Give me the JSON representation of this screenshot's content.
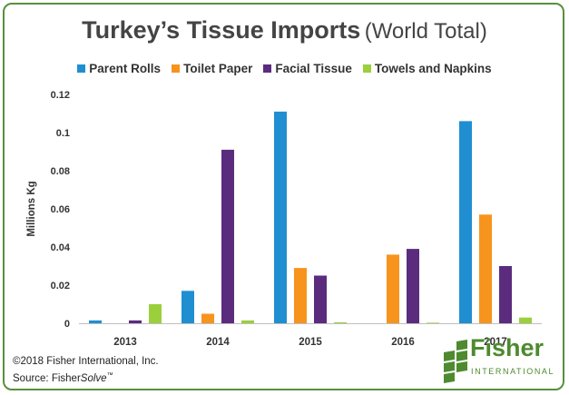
{
  "title": {
    "main": "Turkey’s Tissue Imports",
    "sub": "(World Total)"
  },
  "chart_data": {
    "type": "bar",
    "categories": [
      "2013",
      "2014",
      "2015",
      "2016",
      "2017"
    ],
    "series": [
      {
        "name": "Parent Rolls",
        "color": "#1f8fd1",
        "values": [
          0.0015,
          0.017,
          0.111,
          0.0,
          0.106
        ]
      },
      {
        "name": "Toilet Paper",
        "color": "#f7941d",
        "values": [
          0.0,
          0.005,
          0.029,
          0.036,
          0.057
        ]
      },
      {
        "name": "Facial Tissue",
        "color": "#5b2c7e",
        "values": [
          0.0015,
          0.091,
          0.025,
          0.039,
          0.03
        ]
      },
      {
        "name": "Towels and Napkins",
        "color": "#9bcf3c",
        "values": [
          0.01,
          0.0015,
          0.0005,
          0.0003,
          0.003
        ]
      }
    ],
    "ylabel": "Millions Kg",
    "xlabel": "",
    "ylim": [
      0,
      0.12
    ],
    "yticks": [
      "0",
      "0.02",
      "0.04",
      "0.06",
      "0.08",
      "0.1",
      "0.12"
    ],
    "grid": false,
    "legend": "top"
  },
  "footer": {
    "copyright": "©2018 Fisher International, Inc.",
    "source_prefix": "Source: Fisher",
    "source_italic": "Solve",
    "source_tm": "™"
  },
  "logo": {
    "name": "Fisher",
    "tagline": "INTERNATIONAL",
    "color": "#4e8a2f"
  }
}
